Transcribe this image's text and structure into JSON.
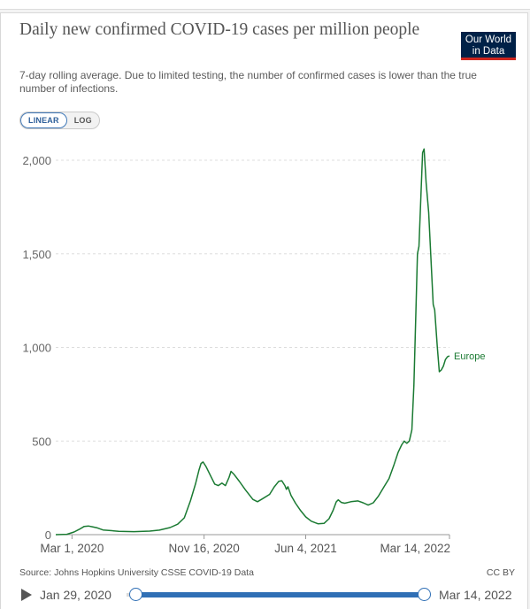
{
  "header": {
    "title": "Daily new confirmed COVID-19 cases per million people",
    "subtitle": "7-day rolling average. Due to limited testing, the number of confirmed cases is lower than the true number of infections.",
    "logo_line1": "Our World",
    "logo_line2": "in Data"
  },
  "controls": {
    "scale_options": [
      "LINEAR",
      "LOG"
    ],
    "selected_scale": "LINEAR"
  },
  "footer": {
    "source": "Source: Johns Hopkins University CSSE COVID-19 Data",
    "license": "CC BY"
  },
  "timeline": {
    "start_label": "Jan 29, 2020",
    "end_label": "Mar 14, 2022"
  },
  "colors": {
    "series": "#1a7a32",
    "logo_bg": "#002147",
    "logo_accent": "#ce261e",
    "slider": "#2f6fb5"
  },
  "chart_data": {
    "type": "line",
    "title": "Daily new confirmed COVID-19 cases per million people",
    "subtitle": "7-day rolling average. Due to limited testing, the number of confirmed cases is lower than the true number of infections.",
    "x_range": [
      "2020-01-29",
      "2022-03-14"
    ],
    "ylim": [
      0,
      2000
    ],
    "y_ticks": [
      0,
      500,
      1000,
      1500,
      2000
    ],
    "y_tick_labels": [
      "0",
      "500",
      "1,000",
      "1,500",
      "2,000"
    ],
    "x_ticks": [
      "2020-03-01",
      "2020-11-16",
      "2021-06-04",
      "2022-03-14"
    ],
    "x_tick_labels": [
      "Mar 1, 2020",
      "Nov 16, 2020",
      "Jun 4, 2021",
      "Mar 14, 2022"
    ],
    "grid": "horizontal dashed",
    "series": [
      {
        "name": "Europe",
        "points": [
          [
            "2020-01-29",
            0
          ],
          [
            "2020-02-20",
            2
          ],
          [
            "2020-03-05",
            14
          ],
          [
            "2020-03-15",
            28
          ],
          [
            "2020-03-25",
            44
          ],
          [
            "2020-04-03",
            46
          ],
          [
            "2020-04-10",
            42
          ],
          [
            "2020-04-20",
            36
          ],
          [
            "2020-05-01",
            25
          ],
          [
            "2020-06-01",
            18
          ],
          [
            "2020-07-01",
            16
          ],
          [
            "2020-08-01",
            19
          ],
          [
            "2020-08-20",
            24
          ],
          [
            "2020-09-10",
            38
          ],
          [
            "2020-09-25",
            56
          ],
          [
            "2020-10-08",
            90
          ],
          [
            "2020-10-20",
            180
          ],
          [
            "2020-10-30",
            270
          ],
          [
            "2020-11-06",
            345
          ],
          [
            "2020-11-10",
            380
          ],
          [
            "2020-11-14",
            388
          ],
          [
            "2020-11-20",
            362
          ],
          [
            "2020-11-30",
            308
          ],
          [
            "2020-12-07",
            270
          ],
          [
            "2020-12-14",
            262
          ],
          [
            "2020-12-21",
            275
          ],
          [
            "2020-12-28",
            262
          ],
          [
            "2021-01-04",
            305
          ],
          [
            "2021-01-08",
            338
          ],
          [
            "2021-01-14",
            322
          ],
          [
            "2021-01-24",
            286
          ],
          [
            "2021-02-05",
            240
          ],
          [
            "2021-02-20",
            188
          ],
          [
            "2021-03-01",
            176
          ],
          [
            "2021-03-10",
            190
          ],
          [
            "2021-03-25",
            215
          ],
          [
            "2021-04-03",
            255
          ],
          [
            "2021-04-12",
            285
          ],
          [
            "2021-04-18",
            288
          ],
          [
            "2021-04-24",
            262
          ],
          [
            "2021-04-27",
            242
          ],
          [
            "2021-04-30",
            256
          ],
          [
            "2021-05-06",
            210
          ],
          [
            "2021-05-15",
            168
          ],
          [
            "2021-05-25",
            128
          ],
          [
            "2021-06-04",
            95
          ],
          [
            "2021-06-15",
            72
          ],
          [
            "2021-06-28",
            58
          ],
          [
            "2021-07-10",
            60
          ],
          [
            "2021-07-20",
            85
          ],
          [
            "2021-07-28",
            130
          ],
          [
            "2021-08-03",
            175
          ],
          [
            "2021-08-07",
            186
          ],
          [
            "2021-08-13",
            172
          ],
          [
            "2021-08-20",
            168
          ],
          [
            "2021-09-01",
            176
          ],
          [
            "2021-09-15",
            180
          ],
          [
            "2021-09-25",
            170
          ],
          [
            "2021-10-05",
            158
          ],
          [
            "2021-10-15",
            170
          ],
          [
            "2021-10-25",
            205
          ],
          [
            "2021-11-05",
            255
          ],
          [
            "2021-11-15",
            300
          ],
          [
            "2021-11-25",
            375
          ],
          [
            "2021-12-03",
            440
          ],
          [
            "2021-12-10",
            480
          ],
          [
            "2021-12-15",
            500
          ],
          [
            "2021-12-20",
            488
          ],
          [
            "2021-12-25",
            500
          ],
          [
            "2021-12-30",
            560
          ],
          [
            "2022-01-03",
            800
          ],
          [
            "2022-01-07",
            1200
          ],
          [
            "2022-01-10",
            1500
          ],
          [
            "2022-01-13",
            1540
          ],
          [
            "2022-01-17",
            1820
          ],
          [
            "2022-01-20",
            2040
          ],
          [
            "2022-01-23",
            2060
          ],
          [
            "2022-01-27",
            1880
          ],
          [
            "2022-02-01",
            1720
          ],
          [
            "2022-02-06",
            1450
          ],
          [
            "2022-02-10",
            1230
          ],
          [
            "2022-02-13",
            1200
          ],
          [
            "2022-02-18",
            1005
          ],
          [
            "2022-02-22",
            870
          ],
          [
            "2022-02-26",
            880
          ],
          [
            "2022-03-02",
            900
          ],
          [
            "2022-03-06",
            935
          ],
          [
            "2022-03-10",
            950
          ],
          [
            "2022-03-14",
            955
          ]
        ]
      }
    ]
  }
}
